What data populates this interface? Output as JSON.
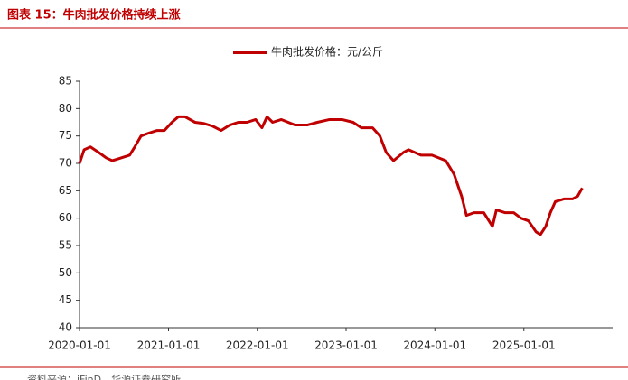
{
  "chart_data": {
    "type": "line",
    "title": "图表 15：牛肉批发价格持续上涨",
    "source": "资料来源：iFinD，华源证券研究所",
    "series": [
      {
        "name": "牛肉批发价格：元/公斤",
        "color": "#c00000",
        "x": [
          "2020-01-01",
          "2020-01-20",
          "2020-02-15",
          "2020-03-20",
          "2020-04-20",
          "2020-05-15",
          "2020-06-20",
          "2020-07-25",
          "2020-08-15",
          "2020-09-10",
          "2020-10-10",
          "2020-11-15",
          "2020-12-15",
          "2021-01-15",
          "2021-02-10",
          "2021-03-10",
          "2021-04-20",
          "2021-05-25",
          "2021-07-01",
          "2021-08-05",
          "2021-09-10",
          "2021-10-15",
          "2021-11-20",
          "2021-12-25",
          "2022-01-20",
          "2022-02-10",
          "2022-03-05",
          "2022-04-10",
          "2022-06-05",
          "2022-07-25",
          "2022-09-05",
          "2022-10-25",
          "2022-12-15",
          "2023-01-30",
          "2023-03-05",
          "2023-04-20",
          "2023-05-20",
          "2023-06-15",
          "2023-07-15",
          "2023-08-25",
          "2023-09-15",
          "2023-11-05",
          "2023-12-20",
          "2024-02-15",
          "2024-03-20",
          "2024-04-20",
          "2024-05-10",
          "2024-06-10",
          "2024-07-20",
          "2024-08-25",
          "2024-09-10",
          "2024-10-15",
          "2024-11-20",
          "2024-12-20",
          "2025-01-20",
          "2025-02-20",
          "2025-03-10",
          "2025-04-01",
          "2025-04-20",
          "2025-05-10",
          "2025-06-15",
          "2025-07-20",
          "2025-08-10",
          "2025-08-29"
        ],
        "values": [
          70,
          72.5,
          73,
          72,
          71,
          70.5,
          71,
          71.5,
          73,
          75,
          75.5,
          76,
          76,
          77.5,
          78.5,
          78.5,
          77.5,
          77.3,
          76.8,
          76,
          77,
          77.5,
          77.5,
          78,
          76.5,
          78.5,
          77.5,
          78,
          77,
          77,
          77.5,
          78,
          78,
          77.5,
          76.5,
          76.5,
          75,
          72,
          70.5,
          72,
          72.5,
          71.5,
          71.5,
          70.5,
          68,
          64,
          60.5,
          61,
          61,
          58.5,
          61.5,
          61,
          61,
          60,
          59.5,
          57.5,
          57,
          58.5,
          61,
          63,
          63.5,
          63.5,
          64,
          65.5
        ]
      }
    ],
    "xlim": [
      "2020-01-01",
      "2026-01-01"
    ],
    "xticks": [
      "2020-01-01",
      "2021-01-01",
      "2022-01-01",
      "2023-01-01",
      "2024-01-01",
      "2025-01-01"
    ],
    "ylim": [
      40,
      85
    ],
    "yticks": [
      40,
      45,
      50,
      55,
      60,
      65,
      70,
      75,
      80,
      85
    ],
    "grid": false,
    "legend": "top"
  }
}
